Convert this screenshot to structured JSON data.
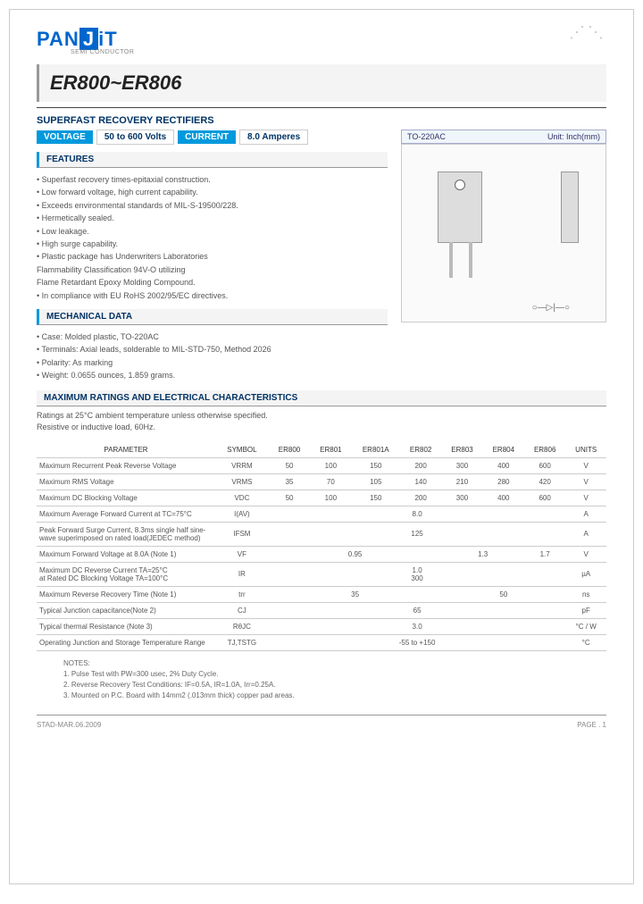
{
  "logo": {
    "brand_pre": "PAN",
    "brand_post": "J",
    "brand_end": "T",
    "sub": "SEMI\nCONDUCTOR"
  },
  "title": "ER800~ER806",
  "subtitle": "SUPERFAST RECOVERY RECTIFIERS",
  "spec_badges": {
    "voltage_label": "VOLTAGE",
    "voltage_val": "50 to 600 Volts",
    "current_label": "CURRENT",
    "current_val": "8.0 Amperes"
  },
  "package": {
    "name": "TO-220AC",
    "unit": "Unit: Inch(mm)"
  },
  "features": {
    "header": "FEATURES",
    "items": [
      "Superfast recovery times-epitaxial construction.",
      "Low forward voltage, high current capability.",
      "Exceeds environmental standards of MIL-S-19500/228.",
      "Hermetically sealed.",
      "Low leakage.",
      "High surge capability.",
      "Plastic package has Underwriters Laboratories\nFlammability Classification 94V-O utilizing\nFlame Retardant Epoxy Molding Compound.",
      "In compliance with EU RoHS 2002/95/EC directives."
    ]
  },
  "mechanical": {
    "header": "MECHANICAL DATA",
    "items": [
      "Case: Molded plastic, TO-220AC",
      "Terminals: Axial leads, solderable to MIL-STD-750, Method 2026",
      "Polarity: As marking",
      "Weight: 0.0655 ounces, 1.859 grams."
    ]
  },
  "ratings": {
    "header": "MAXIMUM RATINGS AND ELECTRICAL CHARACTERISTICS",
    "note": "Ratings at 25°C ambient temperature unless otherwise specified.\nResistive or inductive load, 60Hz.",
    "columns": [
      "PARAMETER",
      "SYMBOL",
      "ER800",
      "ER801",
      "ER801A",
      "ER802",
      "ER803",
      "ER804",
      "ER806",
      "UNITS"
    ],
    "rows": [
      {
        "param": "Maximum Recurrent Peak Reverse Voltage",
        "sym": "VRRM",
        "vals": [
          "50",
          "100",
          "150",
          "200",
          "300",
          "400",
          "600"
        ],
        "unit": "V"
      },
      {
        "param": "Maximum RMS Voltage",
        "sym": "VRMS",
        "vals": [
          "35",
          "70",
          "105",
          "140",
          "210",
          "280",
          "420"
        ],
        "unit": "V"
      },
      {
        "param": "Maximum DC Blocking Voltage",
        "sym": "VDC",
        "vals": [
          "50",
          "100",
          "150",
          "200",
          "300",
          "400",
          "600"
        ],
        "unit": "V"
      },
      {
        "param": "Maximum Average Forward Current at TC=75°C",
        "sym": "I(AV)",
        "span": "8.0",
        "unit": "A"
      },
      {
        "param": "Peak Forward Surge Current, 8.3ms single half sine-wave superimposed on rated load(JEDEC method)",
        "sym": "IFSM",
        "span": "125",
        "unit": "A"
      },
      {
        "param": "Maximum Forward Voltage at 8.0A (Note 1)",
        "sym": "VF",
        "groups": [
          {
            "span": 4,
            "val": "0.95"
          },
          {
            "span": 2,
            "val": "1.3"
          },
          {
            "span": 1,
            "val": "1.7"
          }
        ],
        "unit": "V"
      },
      {
        "param": "Maximum DC Reverse Current TA=25°C\nat Rated DC Blocking Voltage TA=100°C",
        "sym": "IR",
        "span": "1.0\n300",
        "unit": "µA"
      },
      {
        "param": "Maximum Reverse Recovery Time (Note 1)",
        "sym": "trr",
        "groups": [
          {
            "span": 4,
            "val": "35"
          },
          {
            "span": 3,
            "val": "50"
          }
        ],
        "unit": "ns"
      },
      {
        "param": "Typical Junction capacitance(Note 2)",
        "sym": "CJ",
        "span": "65",
        "unit": "pF"
      },
      {
        "param": "Typical thermal Resistance (Note 3)",
        "sym": "RθJC",
        "span": "3.0",
        "unit": "°C / W"
      },
      {
        "param": "Operating Junction and Storage Temperature Range",
        "sym": "TJ,TSTG",
        "span": "-55 to +150",
        "unit": "°C"
      }
    ]
  },
  "notes": {
    "header": "NOTES:",
    "items": [
      "1. Pulse Test with PW=300 usec, 2% Duty Cycle.",
      "2. Reverse Recovery Test Conditions: IF=0.5A, IR=1.0A, Irr=0.25A.",
      "3. Mounted on P.C. Board with 14mm2 (.013mm thick) copper pad areas."
    ]
  },
  "footer": {
    "left": "STAD-MAR.06.2009",
    "right": "PAGE . 1"
  }
}
